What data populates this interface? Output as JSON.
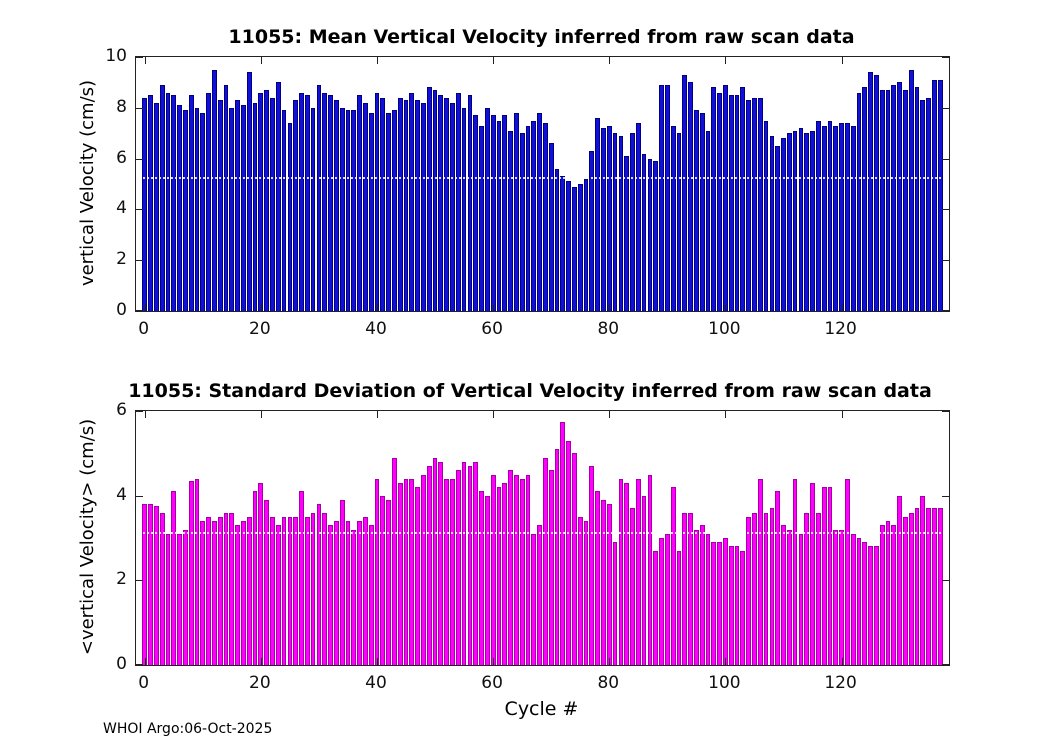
{
  "figure": {
    "footer": "WHOI Argo:06-Oct-2025"
  },
  "chart_data": [
    {
      "type": "bar",
      "title": "11055: Mean Vertical Velocity inferred from raw scan data",
      "ylabel": "vertical Velocity (cm/s)",
      "xlabel": "",
      "ylim": [
        0,
        10
      ],
      "yticks": [
        0,
        2,
        4,
        6,
        8,
        10
      ],
      "xlim": [
        -1.5,
        138.5
      ],
      "xticks": [
        0,
        20,
        40,
        60,
        80,
        100,
        120
      ],
      "bar_color": "#1010d8",
      "bar_edge": "#000080",
      "bar_width": 0.82,
      "grid": false,
      "overlay_gridline_y": 5.2,
      "values": [
        8.4,
        8.5,
        8.2,
        8.9,
        8.6,
        8.5,
        8.1,
        7.9,
        8.5,
        8.0,
        7.8,
        8.6,
        9.5,
        8.3,
        8.9,
        8.0,
        8.3,
        8.1,
        9.4,
        8.2,
        8.6,
        8.7,
        8.4,
        9.0,
        7.9,
        7.4,
        8.3,
        8.6,
        8.5,
        8.0,
        8.9,
        8.6,
        8.5,
        8.3,
        8.0,
        7.9,
        7.9,
        8.5,
        8.2,
        7.8,
        8.6,
        8.4,
        7.8,
        7.9,
        8.4,
        8.3,
        8.6,
        8.3,
        8.2,
        8.8,
        8.7,
        8.5,
        8.4,
        8.2,
        8.6,
        8.0,
        8.5,
        7.7,
        7.3,
        8.0,
        7.7,
        7.5,
        7.7,
        7.1,
        7.8,
        7.0,
        7.3,
        7.5,
        7.8,
        7.4,
        6.6,
        5.6,
        5.3,
        5.1,
        4.9,
        5.0,
        5.2,
        6.3,
        7.6,
        7.2,
        7.3,
        7.0,
        6.9,
        6.1,
        7.0,
        7.4,
        6.2,
        6.0,
        5.9,
        8.9,
        8.9,
        7.3,
        7.0,
        9.3,
        9.0,
        7.9,
        7.8,
        7.1,
        8.8,
        8.6,
        8.9,
        8.5,
        8.5,
        8.8,
        8.3,
        8.4,
        8.4,
        7.5,
        6.9,
        6.5,
        6.8,
        7.0,
        7.1,
        7.2,
        7.0,
        7.1,
        7.5,
        7.3,
        7.5,
        7.3,
        7.4,
        7.4,
        7.3,
        8.6,
        8.8,
        9.4,
        9.3,
        8.7,
        8.7,
        8.9,
        9.0,
        8.7,
        9.5,
        8.8,
        8.3,
        8.4,
        9.1,
        9.1
      ]
    },
    {
      "type": "bar",
      "title": "11055: Standard Deviation of Vertical Velocity inferred from raw scan data",
      "ylabel": "<vertical Velocity> (cm/s)",
      "xlabel": "Cycle #",
      "ylim": [
        0,
        6
      ],
      "yticks": [
        0,
        2,
        4,
        6
      ],
      "xlim": [
        -1.5,
        138.5
      ],
      "xticks": [
        0,
        20,
        40,
        60,
        80,
        100,
        120
      ],
      "bar_color": "#ff00ff",
      "bar_edge": "#a800a8",
      "bar_width": 0.82,
      "grid": false,
      "overlay_gridline_y": 3.1,
      "values": [
        3.8,
        3.8,
        3.75,
        3.6,
        3.1,
        4.1,
        3.1,
        3.2,
        4.35,
        4.4,
        3.4,
        3.5,
        3.4,
        3.5,
        3.6,
        3.6,
        3.3,
        3.4,
        3.5,
        4.1,
        4.3,
        3.9,
        3.5,
        3.3,
        3.5,
        3.5,
        3.5,
        4.1,
        3.5,
        3.6,
        3.8,
        3.6,
        3.3,
        3.4,
        3.9,
        3.4,
        3.2,
        3.4,
        3.5,
        3.3,
        4.4,
        4.0,
        3.9,
        4.9,
        4.3,
        4.4,
        4.4,
        4.2,
        4.5,
        4.7,
        4.9,
        4.8,
        4.4,
        4.4,
        4.6,
        4.8,
        4.7,
        4.8,
        4.1,
        4.0,
        4.5,
        4.2,
        4.3,
        4.6,
        4.5,
        4.4,
        4.5,
        3.1,
        3.3,
        4.9,
        4.6,
        5.1,
        5.75,
        5.3,
        5.0,
        3.5,
        3.4,
        4.7,
        4.1,
        3.9,
        3.8,
        2.9,
        4.4,
        4.3,
        3.7,
        4.4,
        4.0,
        4.5,
        2.7,
        3.0,
        3.1,
        4.2,
        2.7,
        3.6,
        3.6,
        3.2,
        3.3,
        3.1,
        2.9,
        2.9,
        3.0,
        2.8,
        2.8,
        2.7,
        3.5,
        3.6,
        4.4,
        3.6,
        3.7,
        4.1,
        3.3,
        3.2,
        4.4,
        3.1,
        3.6,
        4.3,
        3.6,
        4.2,
        4.2,
        3.2,
        3.2,
        4.4,
        3.1,
        3.0,
        2.9,
        2.8,
        2.8,
        3.3,
        3.4,
        3.3,
        4.0,
        3.5,
        3.6,
        3.7,
        4.0,
        3.7,
        3.7,
        3.7
      ]
    }
  ]
}
